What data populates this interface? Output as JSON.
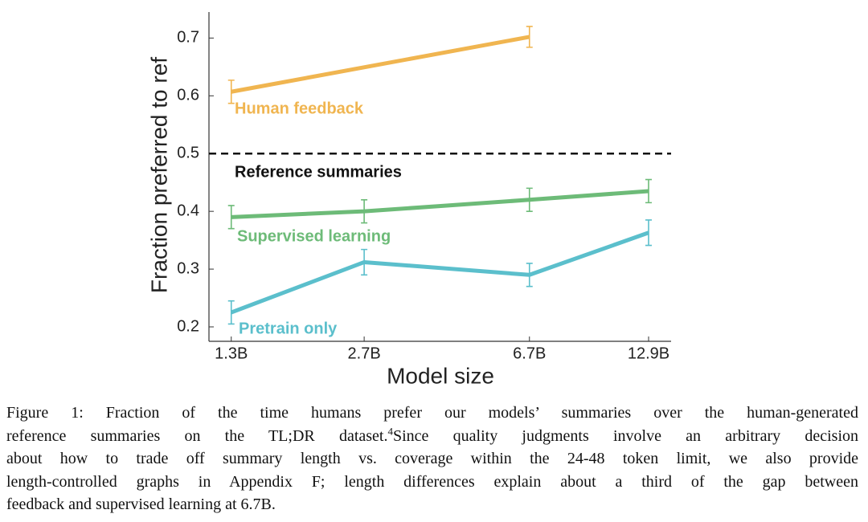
{
  "chart_data": {
    "type": "line",
    "x_label": "Model size",
    "y_label": "Fraction preferred to ref",
    "log_x": true,
    "xlim": [
      1.15,
      14.6
    ],
    "xticks": [
      {
        "value": 1.3,
        "label": "1.3B"
      },
      {
        "value": 2.7,
        "label": "2.7B"
      },
      {
        "value": 6.7,
        "label": "6.7B"
      },
      {
        "value": 12.9,
        "label": "12.9B"
      }
    ],
    "ylim": [
      0.175,
      0.745
    ],
    "yticks": [
      0.2,
      0.3,
      0.4,
      0.5,
      0.6,
      0.7
    ],
    "reference_line": {
      "value": 0.5,
      "label": "Reference summaries",
      "color": "#111111"
    },
    "series": [
      {
        "name": "Human feedback",
        "color": "#f0b550",
        "x": [
          1.3,
          6.7
        ],
        "values": [
          0.607,
          0.702
        ],
        "errors": [
          0.02,
          0.018
        ]
      },
      {
        "name": "Supervised learning",
        "color": "#6dbb78",
        "x": [
          1.3,
          2.7,
          6.7,
          12.9
        ],
        "values": [
          0.39,
          0.4,
          0.42,
          0.435
        ],
        "errors": [
          0.02,
          0.02,
          0.02,
          0.02
        ]
      },
      {
        "name": "Pretrain only",
        "color": "#5bbfcc",
        "x": [
          1.3,
          2.7,
          6.7,
          12.9
        ],
        "values": [
          0.225,
          0.312,
          0.29,
          0.363
        ],
        "errors": [
          0.02,
          0.022,
          0.02,
          0.022
        ]
      }
    ]
  },
  "caption": [
    "Figure 1:  Fraction of the time humans prefer our models’ summaries over the human-generated",
    {
      "before": "reference summaries on the TL;DR dataset.",
      "footnote": "4",
      "after": "Since quality judgments involve an arbitrary decision"
    },
    "about how to trade off summary length vs. coverage within the 24-48 token limit, we also provide",
    "length-controlled graphs in Appendix F; length differences explain about a third of the gap between",
    "feedback and supervised learning at 6.7B."
  ]
}
